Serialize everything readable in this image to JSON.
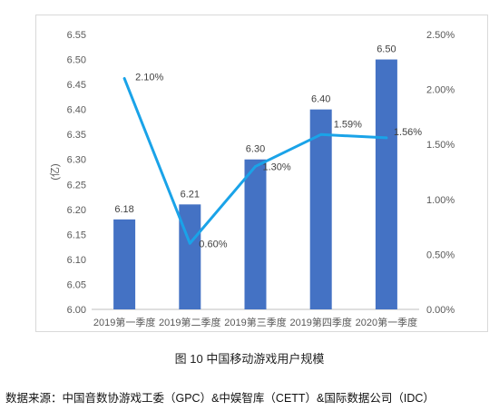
{
  "chart_data": {
    "type": "bar+line",
    "categories": [
      "2019第一季度",
      "2019第二季度",
      "2019第三季度",
      "2019第四季度",
      "2020第一季度"
    ],
    "series": [
      {
        "type": "bar",
        "axis": "left",
        "values": [
          6.18,
          6.21,
          6.3,
          6.4,
          6.5
        ],
        "value_labels": [
          "6.18",
          "6.21",
          "6.30",
          "6.40",
          "6.50"
        ],
        "color": "#4472C4"
      },
      {
        "type": "line",
        "axis": "right",
        "values": [
          2.1,
          0.6,
          1.3,
          1.59,
          1.56
        ],
        "value_labels": [
          "2.10%",
          "0.60%",
          "1.30%",
          "1.59%",
          "1.56%"
        ],
        "color": "#1AA3E8"
      }
    ],
    "ylabel": "(亿)",
    "ylim": [
      6.0,
      6.55
    ],
    "y_ticks": [
      "6.00",
      "6.05",
      "6.10",
      "6.15",
      "6.20",
      "6.25",
      "6.30",
      "6.35",
      "6.40",
      "6.45",
      "6.50",
      "6.55"
    ],
    "y2lim": [
      0,
      2.5
    ],
    "y2_ticks": [
      "0.00%",
      "0.50%",
      "1.00%",
      "1.50%",
      "2.00%",
      "2.50%"
    ],
    "grid": false
  },
  "caption": "图 10  中国移动游戏用户规模",
  "source": "数据来源：中国音数协游戏工委（GPC）&中娱智库（CETT）&国际数据公司（IDC）"
}
